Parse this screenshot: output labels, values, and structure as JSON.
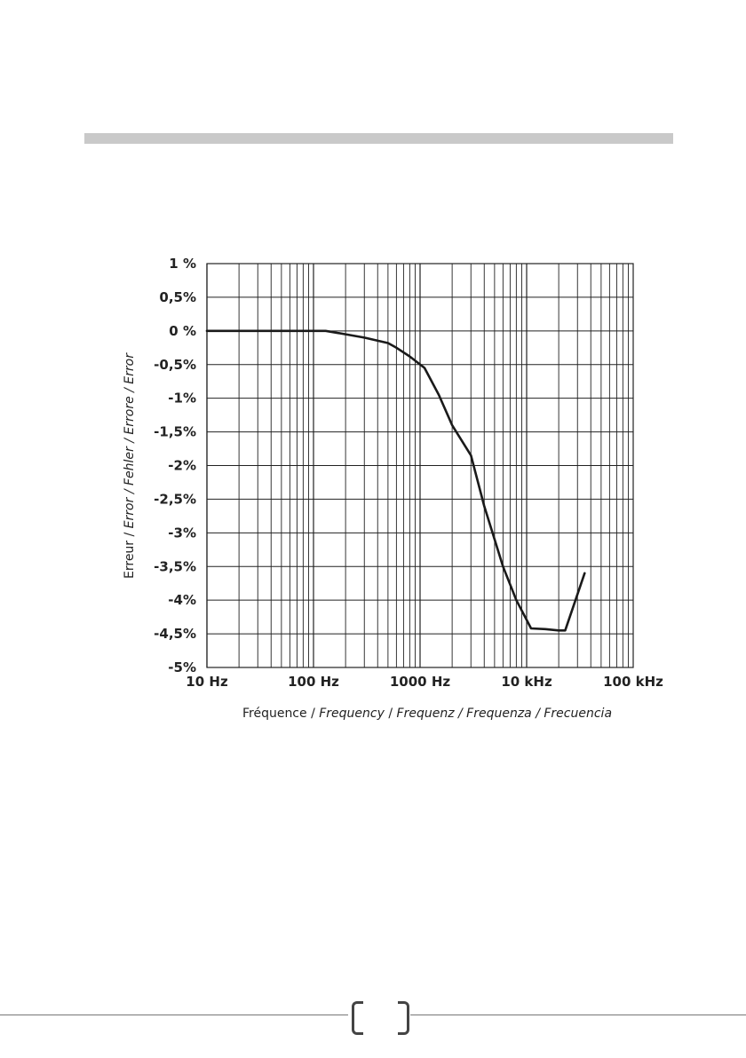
{
  "chart_data": {
    "type": "line",
    "x_scale": "log",
    "x_ticks": [
      "10 Hz",
      "100 Hz",
      "1000 Hz",
      "10 kHz",
      "100 kHz"
    ],
    "x_tick_values": [
      10,
      100,
      1000,
      10000,
      100000
    ],
    "y_ticks": [
      "1 %",
      "0,5%",
      "0 %",
      "-0,5%",
      "-1%",
      "-1,5%",
      "-2%",
      "-2,5%",
      "-3%",
      "-3,5%",
      "-4%",
      "-4,5%",
      "-5%"
    ],
    "y_tick_values": [
      1,
      0.5,
      0,
      -0.5,
      -1,
      -1.5,
      -2,
      -2.5,
      -3,
      -3.5,
      -4,
      -4.5,
      -5
    ],
    "xlim": [
      10,
      100000
    ],
    "ylim": [
      -5,
      1
    ],
    "grid": true,
    "ylabel_parts": [
      "Erreur / ",
      "Error / Fehler / Errore / Error"
    ],
    "xlabel_parts": [
      "Fréquence / ",
      "Frequency",
      " / ",
      "Frequenz / Frequenza / Frecuencia"
    ],
    "series": [
      {
        "color": "#1a1a1a",
        "x": [
          10,
          30,
          100,
          130,
          200,
          300,
          500,
          600,
          800,
          1100,
          1500,
          2000,
          3000,
          4000,
          6000,
          8000,
          11000,
          15000,
          20000,
          23000,
          35000
        ],
        "y": [
          0,
          0,
          0,
          0,
          -0.05,
          -0.1,
          -0.18,
          -0.25,
          -0.38,
          -0.55,
          -0.95,
          -1.4,
          -1.85,
          -2.6,
          -3.5,
          -4.0,
          -4.42,
          -4.43,
          -4.45,
          -4.45,
          -3.6
        ]
      }
    ]
  }
}
